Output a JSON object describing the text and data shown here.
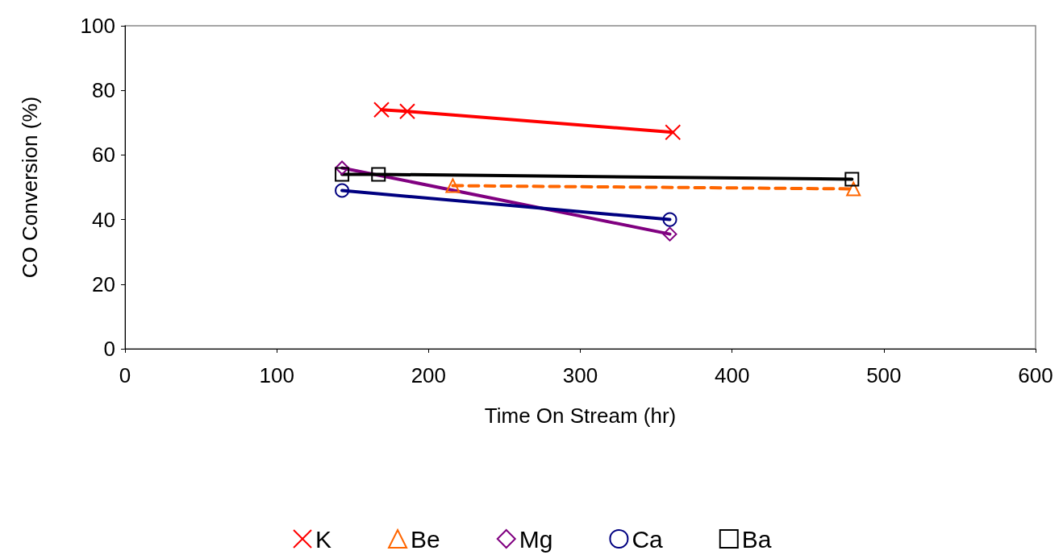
{
  "chart_data": {
    "type": "line",
    "xlabel": "Time On Stream (hr)",
    "ylabel": "CO Conversion (%)",
    "xlim": [
      0,
      600
    ],
    "xticks": [
      0,
      100,
      200,
      300,
      400,
      500,
      600
    ],
    "ylim": [
      0,
      100
    ],
    "yticks": [
      0,
      20,
      40,
      60,
      80,
      100
    ],
    "grid": false,
    "legend": "bottom",
    "line_style": "solid",
    "series": [
      {
        "name": "K",
        "color": "#ff0000",
        "marker": "cross",
        "x": [
          169,
          186,
          361
        ],
        "values": [
          74,
          73.5,
          67
        ]
      },
      {
        "name": "Be",
        "color": "#ff6600",
        "marker": "triangle",
        "line_style": "dashed",
        "x": [
          216,
          480
        ],
        "values": [
          50.5,
          49.5
        ]
      },
      {
        "name": "Mg",
        "color": "#800080",
        "marker": "diamond",
        "x": [
          143,
          359
        ],
        "values": [
          56,
          35.5
        ]
      },
      {
        "name": "Ca",
        "color": "#000080",
        "marker": "circle",
        "x": [
          143,
          359
        ],
        "values": [
          49,
          40
        ]
      },
      {
        "name": "Ba",
        "color": "#000000",
        "marker": "square",
        "x": [
          143,
          167,
          479
        ],
        "values": [
          54,
          54,
          52.5
        ]
      }
    ]
  }
}
